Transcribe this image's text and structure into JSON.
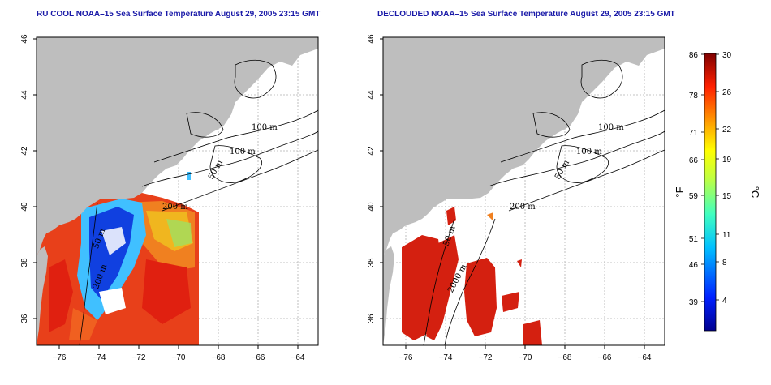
{
  "panels": [
    {
      "title": "RU COOL NOAA–15 Sea Surface Temperature August 29, 2005 23:15 GMT",
      "contour_labels": [
        "100 m",
        "100 m",
        "50 m",
        "200 m",
        "50 m",
        "200 m"
      ]
    },
    {
      "title": "DECLOUDED NOAA–15 Sea Surface Temperature August 29, 2005 23:15 GMT",
      "contour_labels": [
        "100 m",
        "100 m",
        "50 m",
        "200 m",
        "50 m",
        "2000 m"
      ]
    }
  ],
  "axes": {
    "x_ticks": [
      "−76",
      "−74",
      "−72",
      "−70",
      "−68",
      "−66",
      "−64"
    ],
    "y_ticks": [
      "36",
      "38",
      "40",
      "42",
      "44",
      "46"
    ]
  },
  "colorbar": {
    "f_ticks": [
      "86",
      "78",
      "71",
      "66",
      "59",
      "51",
      "46",
      "39"
    ],
    "c_ticks": [
      "30",
      "26",
      "22",
      "19",
      "15",
      "11",
      "8",
      "4"
    ],
    "f_unit": "°F",
    "c_unit": "°C"
  },
  "colors": {
    "land": "#bebebe",
    "title": "#1a1aa8",
    "sst_warm": "#e02010",
    "sst_cold": "#1030d0"
  }
}
